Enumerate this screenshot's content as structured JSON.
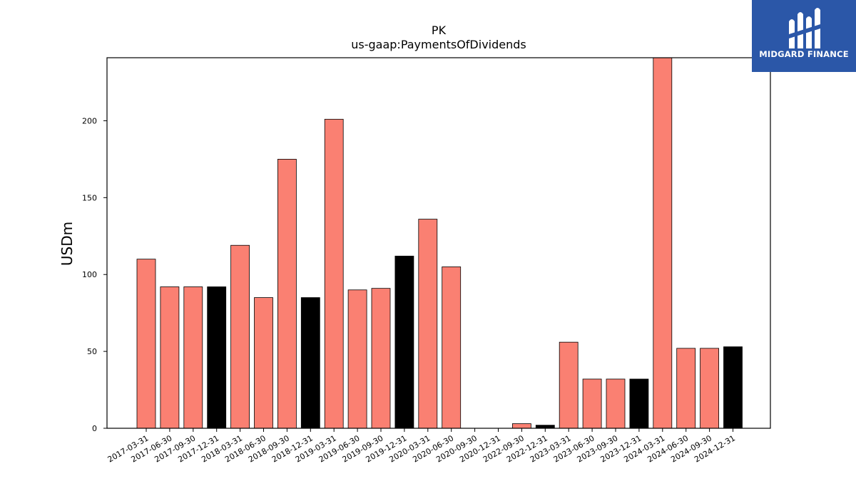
{
  "brand": {
    "name": "MIDGARD FINANCE",
    "bg_color": "#2b57a8"
  },
  "chart_data": {
    "type": "bar",
    "title": "PK",
    "subtitle": "us-gaap:PaymentsOfDividends",
    "xlabel": "",
    "ylabel": "USDm",
    "ylim": [
      0,
      241
    ],
    "yticks": [
      0,
      50,
      100,
      150,
      200
    ],
    "grid": false,
    "colors": {
      "quarter": "#fa8072",
      "year_end": "#000000",
      "edge": "#000000"
    },
    "categories": [
      "2017-03-31",
      "2017-06-30",
      "2017-09-30",
      "2017-12-31",
      "2018-03-31",
      "2018-06-30",
      "2018-09-30",
      "2018-12-31",
      "2019-03-31",
      "2019-06-30",
      "2019-09-30",
      "2019-12-31",
      "2020-03-31",
      "2020-06-30",
      "2020-09-30",
      "2020-12-31",
      "2022-09-30",
      "2022-12-31",
      "2023-03-31",
      "2023-06-30",
      "2023-09-30",
      "2023-12-31",
      "2024-03-31",
      "2024-06-30",
      "2024-09-30",
      "2024-12-31"
    ],
    "values": [
      110,
      92,
      92,
      92,
      119,
      85,
      175,
      85,
      201,
      90,
      91,
      112,
      136,
      105,
      0,
      0,
      3,
      2,
      56,
      32,
      32,
      32,
      241,
      52,
      52,
      53
    ]
  }
}
